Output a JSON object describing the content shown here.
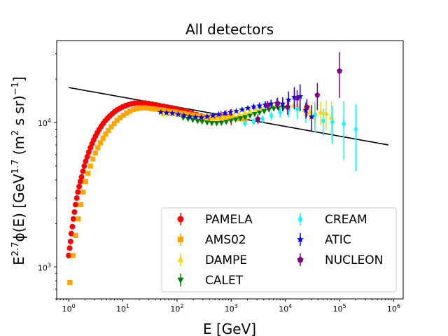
{
  "chart_data": {
    "type": "scatter",
    "title": "All detectors",
    "xlabel": "E [GeV]",
    "ylabel_parts": {
      "e": "E",
      "exp1": "2.7",
      "phi": "ϕ(E) [GeV",
      "exp2": "1.7",
      "mid": " (m",
      "exp3": "2",
      "end": " s sr)",
      "exp4": "−1",
      "close": "]"
    },
    "x_scale": "log",
    "y_scale": "log",
    "xlim": [
      0.6,
      1500000
    ],
    "ylim": [
      600,
      37000
    ],
    "x_ticks": [
      {
        "value": 1,
        "base": "10",
        "exp": "0"
      },
      {
        "value": 10,
        "base": "10",
        "exp": "1"
      },
      {
        "value": 100,
        "base": "10",
        "exp": "2"
      },
      {
        "value": 1000,
        "base": "10",
        "exp": "3"
      },
      {
        "value": 10000,
        "base": "10",
        "exp": "4"
      },
      {
        "value": 100000,
        "base": "10",
        "exp": "5"
      },
      {
        "value": 1000000,
        "base": "10",
        "exp": "6"
      }
    ],
    "y_ticks": [
      {
        "value": 1000,
        "base": "10",
        "exp": "3"
      },
      {
        "value": 10000,
        "base": "10",
        "exp": "4"
      }
    ],
    "grid": false,
    "legend_position": "lower-right",
    "legend_columns": 2,
    "fit_line": {
      "x": [
        1,
        800000
      ],
      "y": [
        17500,
        7000
      ],
      "color": "#000000"
    },
    "series": [
      {
        "name": "PAMELA",
        "marker": "circle",
        "color": "#ff0000",
        "points": [
          [
            1.0,
            1200
          ],
          [
            1.04,
            1350
          ],
          [
            1.08,
            1500
          ],
          [
            1.12,
            1700
          ],
          [
            1.17,
            1900
          ],
          [
            1.22,
            2150
          ],
          [
            1.28,
            2400
          ],
          [
            1.34,
            2700
          ],
          [
            1.41,
            3000
          ],
          [
            1.48,
            3300
          ],
          [
            1.56,
            3600
          ],
          [
            1.64,
            3900
          ],
          [
            1.73,
            4200
          ],
          [
            1.83,
            4600
          ],
          [
            1.94,
            5000
          ],
          [
            2.06,
            5400
          ],
          [
            2.2,
            5800
          ],
          [
            2.35,
            6250
          ],
          [
            2.52,
            6700
          ],
          [
            2.7,
            7150
          ],
          [
            2.9,
            7600
          ],
          [
            3.12,
            8050
          ],
          [
            3.37,
            8500
          ],
          [
            3.65,
            8950
          ],
          [
            3.97,
            9400
          ],
          [
            4.33,
            9850
          ],
          [
            4.74,
            10300
          ],
          [
            5.2,
            10700
          ],
          [
            5.73,
            11100
          ],
          [
            6.34,
            11500
          ],
          [
            7.04,
            11900
          ],
          [
            7.85,
            12250
          ],
          [
            8.8,
            12550
          ],
          [
            9.9,
            12850
          ],
          [
            11.2,
            13100
          ],
          [
            12.7,
            13300
          ],
          [
            14.5,
            13500
          ],
          [
            16.6,
            13650
          ],
          [
            19.1,
            13700
          ],
          [
            22.1,
            13700
          ],
          [
            25.7,
            13650
          ],
          [
            30,
            13550
          ],
          [
            35,
            13400
          ],
          [
            41,
            13250
          ],
          [
            48,
            13100
          ],
          [
            57,
            12950
          ],
          [
            67,
            12800
          ],
          [
            80,
            12650
          ],
          [
            95,
            12500
          ],
          [
            113,
            12300
          ],
          [
            135,
            12100
          ],
          [
            160,
            11850
          ],
          [
            190,
            11600
          ],
          [
            230,
            11350
          ],
          [
            280,
            11150
          ],
          [
            340,
            10950
          ],
          [
            420,
            10800
          ],
          [
            520,
            10850
          ],
          [
            650,
            11000
          ],
          [
            800,
            11100
          ],
          [
            1000,
            11000
          ]
        ],
        "errors": [
          [
            650,
            1000
          ],
          [
            800,
            1100
          ],
          [
            1000,
            1400
          ]
        ]
      },
      {
        "name": "AMS02",
        "marker": "square",
        "color": "#ffa500",
        "points": [
          [
            1.05,
            780
          ],
          [
            1.2,
            1200
          ],
          [
            1.35,
            1650
          ],
          [
            1.5,
            2150
          ],
          [
            1.67,
            2700
          ],
          [
            1.85,
            3300
          ],
          [
            2.05,
            3900
          ],
          [
            2.27,
            4450
          ],
          [
            2.52,
            5000
          ],
          [
            2.8,
            5600
          ],
          [
            3.1,
            6150
          ],
          [
            3.45,
            6700
          ],
          [
            3.85,
            7250
          ],
          [
            4.3,
            7800
          ],
          [
            4.8,
            8300
          ],
          [
            5.4,
            8800
          ],
          [
            6.1,
            9350
          ],
          [
            6.9,
            9850
          ],
          [
            7.8,
            10350
          ],
          [
            8.9,
            10800
          ],
          [
            10.2,
            11250
          ],
          [
            11.7,
            11650
          ],
          [
            13.5,
            12000
          ],
          [
            15.6,
            12300
          ],
          [
            18,
            12500
          ],
          [
            21,
            12600
          ],
          [
            24.6,
            12650
          ],
          [
            28.9,
            12600
          ],
          [
            34,
            12500
          ],
          [
            40,
            12400
          ],
          [
            47,
            12300
          ],
          [
            56,
            12200
          ],
          [
            66,
            12050
          ],
          [
            79,
            11950
          ],
          [
            94,
            11850
          ],
          [
            112,
            11700
          ],
          [
            134,
            11600
          ],
          [
            160,
            11450
          ],
          [
            192,
            11300
          ],
          [
            230,
            11200
          ],
          [
            275,
            11100
          ],
          [
            330,
            11000
          ],
          [
            400,
            10950
          ],
          [
            480,
            10900
          ],
          [
            580,
            10850
          ],
          [
            700,
            10800
          ],
          [
            850,
            10800
          ],
          [
            1030,
            10750
          ],
          [
            1250,
            10700
          ],
          [
            1500,
            10650
          ],
          [
            1800,
            10600
          ]
        ],
        "errors": []
      },
      {
        "name": "DAMPE",
        "marker": "triangle-up",
        "color": "#ffd700",
        "points": [
          [
            55,
            11400
          ],
          [
            70,
            11450
          ],
          [
            88,
            11400
          ],
          [
            111,
            11300
          ],
          [
            140,
            11100
          ],
          [
            176,
            10950
          ],
          [
            222,
            10750
          ],
          [
            280,
            10600
          ],
          [
            353,
            10550
          ],
          [
            445,
            10600
          ],
          [
            560,
            10700
          ],
          [
            706,
            10850
          ],
          [
            890,
            11000
          ],
          [
            1120,
            11200
          ],
          [
            1410,
            11450
          ],
          [
            1780,
            11700
          ],
          [
            2240,
            12000
          ],
          [
            2820,
            12300
          ],
          [
            3550,
            12650
          ],
          [
            4470,
            13000
          ],
          [
            5630,
            13300
          ],
          [
            7090,
            13500
          ],
          [
            8930,
            13600
          ],
          [
            11250,
            13500
          ],
          [
            14170,
            13150
          ],
          [
            17850,
            12700
          ],
          [
            22480,
            12200
          ],
          [
            28300,
            11800
          ],
          [
            35650,
            11500
          ],
          [
            44900,
            11800
          ],
          [
            56550,
            11600
          ],
          [
            71240,
            10800
          ]
        ],
        "errors": [
          [
            17850,
            1000
          ],
          [
            22480,
            1200
          ],
          [
            28300,
            1500
          ],
          [
            35650,
            1800
          ],
          [
            44900,
            2200
          ],
          [
            56550,
            2700
          ],
          [
            71240,
            3200
          ]
        ]
      },
      {
        "name": "CALET",
        "marker": "triangle-down",
        "color": "#008000",
        "points": [
          [
            130,
            10800
          ],
          [
            160,
            10600
          ],
          [
            195,
            10450
          ],
          [
            240,
            10250
          ],
          [
            290,
            10150
          ],
          [
            360,
            10000
          ],
          [
            440,
            9900
          ],
          [
            540,
            9900
          ],
          [
            660,
            9950
          ],
          [
            810,
            10100
          ],
          [
            990,
            10300
          ],
          [
            1210,
            10500
          ],
          [
            1480,
            10700
          ],
          [
            1810,
            10900
          ],
          [
            2220,
            11150
          ],
          [
            2720,
            11450
          ],
          [
            3330,
            11750
          ],
          [
            4070,
            12000
          ],
          [
            4990,
            12300
          ],
          [
            6110,
            12500
          ],
          [
            7480,
            12600
          ],
          [
            9160,
            12650
          ]
        ],
        "errors": []
      },
      {
        "name": "CREAM",
        "marker": "diamond",
        "color": "#00ffff",
        "points": [
          [
            1800,
            9900
          ],
          [
            2600,
            10200
          ],
          [
            3800,
            10600
          ],
          [
            5500,
            11200
          ],
          [
            8000,
            11800
          ],
          [
            11500,
            12200
          ],
          [
            16500,
            12400
          ],
          [
            24000,
            12000
          ],
          [
            35000,
            11300
          ],
          [
            50000,
            10300
          ],
          [
            74000,
            10100
          ],
          [
            120000,
            9800
          ],
          [
            200000,
            9000
          ]
        ],
        "errors": [
          [
            1800,
            500
          ],
          [
            2600,
            550
          ],
          [
            3800,
            650
          ],
          [
            5500,
            800
          ],
          [
            8000,
            1000
          ],
          [
            11500,
            1300
          ],
          [
            16500,
            1700
          ],
          [
            24000,
            2100
          ],
          [
            35000,
            2700
          ],
          [
            50000,
            2200
          ],
          [
            74000,
            3000
          ],
          [
            120000,
            4300
          ],
          [
            200000,
            4400
          ]
        ]
      },
      {
        "name": "ATIC",
        "marker": "star",
        "color": "#0000ff",
        "points": [
          [
            50,
            11800
          ],
          [
            64,
            11700
          ],
          [
            82,
            11600
          ],
          [
            105,
            11400
          ],
          [
            134,
            11200
          ],
          [
            172,
            11000
          ],
          [
            220,
            10900
          ],
          [
            282,
            10850
          ],
          [
            360,
            11000
          ],
          [
            460,
            11200
          ],
          [
            590,
            11400
          ],
          [
            760,
            11600
          ],
          [
            970,
            11800
          ],
          [
            1240,
            12000
          ],
          [
            1590,
            12300
          ],
          [
            2030,
            12600
          ],
          [
            2600,
            12900
          ],
          [
            3330,
            13100
          ],
          [
            4260,
            13300
          ],
          [
            5450,
            13500
          ],
          [
            6980,
            13600
          ],
          [
            8930,
            13500
          ],
          [
            11430,
            14400
          ],
          [
            14630,
            15000
          ],
          [
            18720,
            15200
          ],
          [
            23960,
            12200
          ],
          [
            30670,
            11000
          ]
        ],
        "errors": [
          [
            2600,
            600
          ],
          [
            3330,
            700
          ],
          [
            4260,
            800
          ],
          [
            5450,
            900
          ],
          [
            6980,
            1100
          ],
          [
            8930,
            1500
          ],
          [
            11430,
            2000
          ],
          [
            14630,
            2600
          ],
          [
            18720,
            3200
          ],
          [
            23960,
            1500
          ],
          [
            30670,
            2200
          ]
        ]
      },
      {
        "name": "NUCLEON",
        "marker": "pentagon",
        "color": "#800080",
        "points": [
          [
            3100,
            10600
          ],
          [
            4700,
            13200
          ],
          [
            7200,
            13600
          ],
          [
            11000,
            12800
          ],
          [
            16500,
            14800
          ],
          [
            25000,
            12800
          ],
          [
            39000,
            15500
          ],
          [
            100000,
            22800
          ]
        ],
        "errors": [
          [
            3100,
            800
          ],
          [
            4700,
            1000
          ],
          [
            7200,
            1300
          ],
          [
            11000,
            1500
          ],
          [
            16500,
            2000
          ],
          [
            25000,
            1800
          ],
          [
            39000,
            3300
          ],
          [
            100000,
            8000
          ]
        ]
      }
    ]
  }
}
